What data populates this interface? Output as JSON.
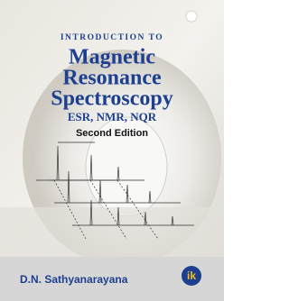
{
  "cover": {
    "title": {
      "line0": "INTRODUCTION TO",
      "line1": "Magnetic",
      "line2": "Resonance",
      "line3": "Spectroscopy"
    },
    "subtitle": "ESR, NMR, NQR",
    "edition": "Second Edition",
    "author": "D.N. Sathyanarayana",
    "publisher_logo": "ik"
  }
}
